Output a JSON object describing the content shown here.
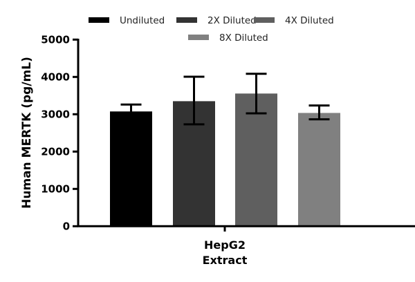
{
  "chart_data": {
    "type": "bar",
    "categories": [
      "HepG2 Extract"
    ],
    "category_lines": [
      "HepG2",
      "Extract"
    ],
    "ylabel": "Human MERTK (pg/mL)",
    "xlabel": "",
    "ylim": [
      0,
      5000
    ],
    "yticks": [
      "0",
      "1000",
      "2000",
      "3000",
      "4000",
      "5000"
    ],
    "grid": false,
    "legend_position": "top",
    "error_bars": true,
    "series": [
      {
        "name": "Undiluted",
        "color": "#000000",
        "values": [
          3075
        ],
        "err_upper": [
          3260
        ],
        "err_lower": [
          2890
        ]
      },
      {
        "name": "2X Diluted",
        "color": "#333333",
        "values": [
          3350
        ],
        "err_upper": [
          4005
        ],
        "err_lower": [
          2730
        ]
      },
      {
        "name": "4X Diluted",
        "color": "#5f5f5f",
        "values": [
          3555
        ],
        "err_upper": [
          4085
        ],
        "err_lower": [
          3025
        ]
      },
      {
        "name": "8X Diluted",
        "color": "#808080",
        "values": [
          3035
        ],
        "err_upper": [
          3235
        ],
        "err_lower": [
          2865
        ]
      }
    ]
  }
}
